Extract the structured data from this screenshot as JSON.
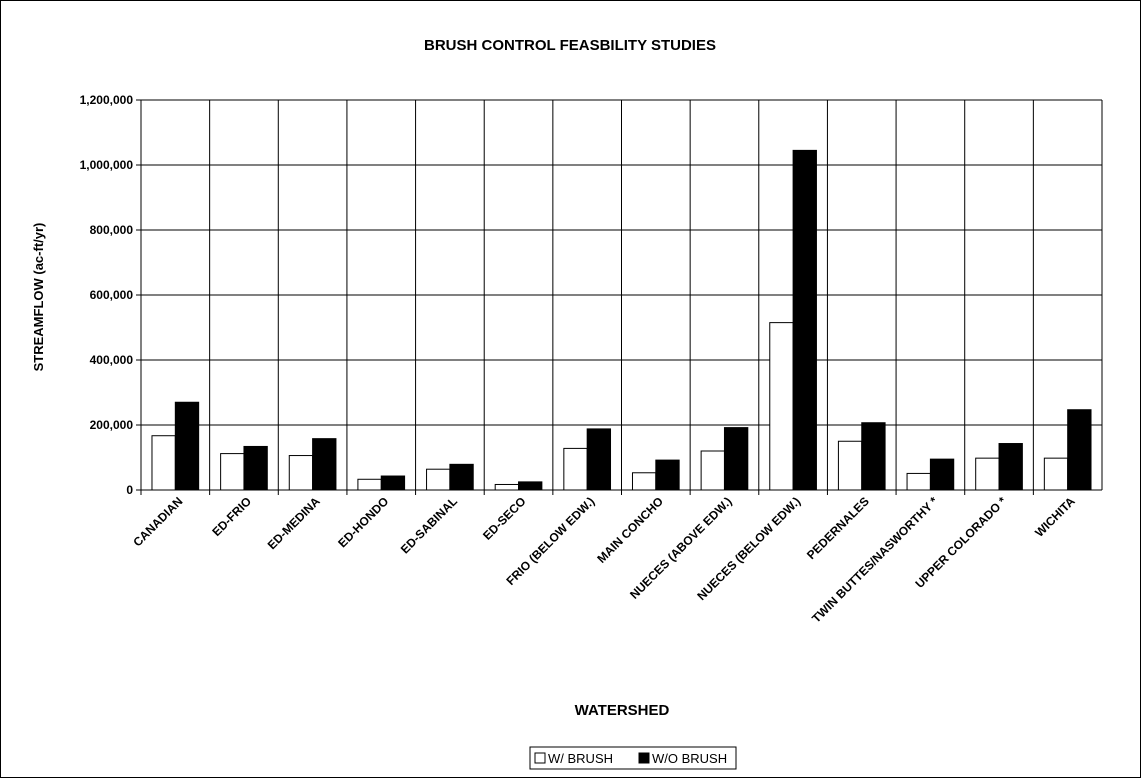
{
  "chart_data": {
    "type": "bar",
    "title": "BRUSH CONTROL FEASBILITY STUDIES",
    "xlabel": "WATERSHED",
    "ylabel": "STREAMFLOW (ac-ft/yr)",
    "ylim": [
      0,
      1200000
    ],
    "yticks": [
      0,
      200000,
      400000,
      600000,
      800000,
      1000000,
      1200000
    ],
    "ytick_labels": [
      "0",
      "200,000",
      "400,000",
      "600,000",
      "800,000",
      "1,000,000",
      "1,200,000"
    ],
    "categories": [
      "CANADIAN",
      "ED-FRIO",
      "ED-MEDINA",
      "ED-HONDO",
      "ED-SABINAL",
      "ED-SECO",
      "FRIO (BELOW EDW.)",
      "MAIN CONCHO",
      "NUECES (ABOVE EDW.)",
      "NUECES (BELOW EDW.)",
      "PEDERNALES",
      "TWIN BUTTES/NASWORTHY *",
      "UPPER COLORADO *",
      "WICHITA"
    ],
    "series": [
      {
        "name": "W/ BRUSH",
        "color": "#ffffff",
        "values": [
          167000,
          112000,
          106000,
          33000,
          64000,
          17000,
          128000,
          53000,
          120000,
          515000,
          150000,
          51000,
          98000,
          98000
        ]
      },
      {
        "name": "W/O BRUSH",
        "color": "#000000",
        "values": [
          270000,
          134000,
          158000,
          43000,
          79000,
          25000,
          188000,
          92000,
          192000,
          1045000,
          207000,
          95000,
          143000,
          247000
        ]
      }
    ],
    "grid": true,
    "legend": "bottom-center"
  }
}
